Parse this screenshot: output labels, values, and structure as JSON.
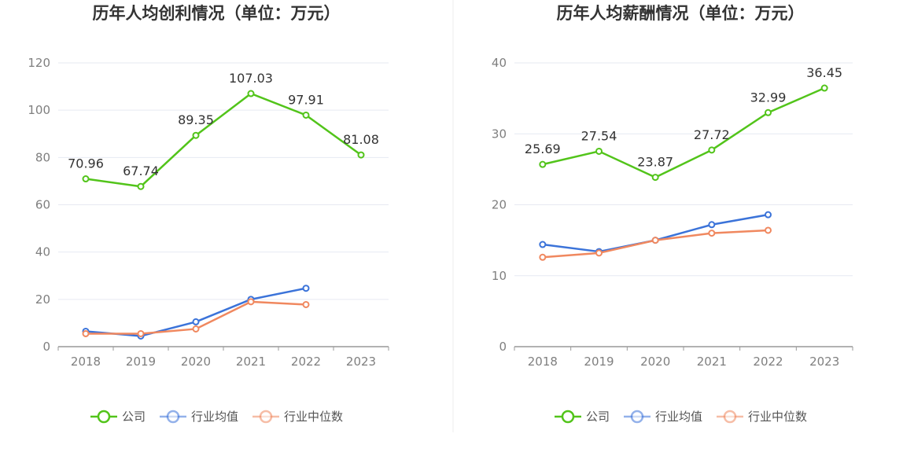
{
  "colors": {
    "company": "#52c41a",
    "industry_avg": "#3b73d9",
    "industry_median": "#f0885f",
    "grid": "#e6e9f2",
    "axis": "#999999",
    "divider": "#eeeeee"
  },
  "legend": {
    "items": [
      {
        "label": "公司",
        "color_key": "company",
        "icon": "circle-line-icon"
      },
      {
        "label": "行业均值",
        "color_key": "industry_avg",
        "icon": "circle-line-icon"
      },
      {
        "label": "行业中位数",
        "color_key": "industry_median",
        "icon": "circle-line-icon"
      }
    ]
  },
  "chart_data": [
    {
      "type": "line",
      "title": "历年人均创利情况（单位：万元）",
      "categories": [
        "2018",
        "2019",
        "2020",
        "2021",
        "2022",
        "2023"
      ],
      "ylim": [
        0,
        120
      ],
      "yticks": [
        0,
        20,
        40,
        60,
        80,
        100,
        120
      ],
      "grid": true,
      "legend_position": "bottom",
      "series": [
        {
          "name": "公司",
          "color_key": "company",
          "values": [
            70.96,
            67.74,
            89.35,
            107.03,
            97.91,
            81.08
          ],
          "labels": [
            "70.96",
            "67.74",
            "89.35",
            "107.03",
            "97.91",
            "81.08"
          ]
        },
        {
          "name": "行业均值",
          "color_key": "industry_avg",
          "values": [
            6.5,
            4.5,
            10.5,
            20.0,
            24.7,
            null
          ]
        },
        {
          "name": "行业中位数",
          "color_key": "industry_median",
          "values": [
            5.5,
            5.5,
            7.5,
            19.0,
            17.8,
            null
          ]
        }
      ]
    },
    {
      "type": "line",
      "title": "历年人均薪酬情况（单位：万元）",
      "categories": [
        "2018",
        "2019",
        "2020",
        "2021",
        "2022",
        "2023"
      ],
      "ylim": [
        0,
        40
      ],
      "yticks": [
        0,
        10,
        20,
        30,
        40
      ],
      "grid": true,
      "legend_position": "bottom",
      "series": [
        {
          "name": "公司",
          "color_key": "company",
          "values": [
            25.69,
            27.54,
            23.87,
            27.72,
            32.99,
            36.45
          ],
          "labels": [
            "25.69",
            "27.54",
            "23.87",
            "27.72",
            "32.99",
            "36.45"
          ]
        },
        {
          "name": "行业均值",
          "color_key": "industry_avg",
          "values": [
            14.4,
            13.4,
            15.0,
            17.2,
            18.6,
            null
          ]
        },
        {
          "name": "行业中位数",
          "color_key": "industry_median",
          "values": [
            12.6,
            13.2,
            15.0,
            16.0,
            16.4,
            null
          ]
        }
      ]
    }
  ]
}
